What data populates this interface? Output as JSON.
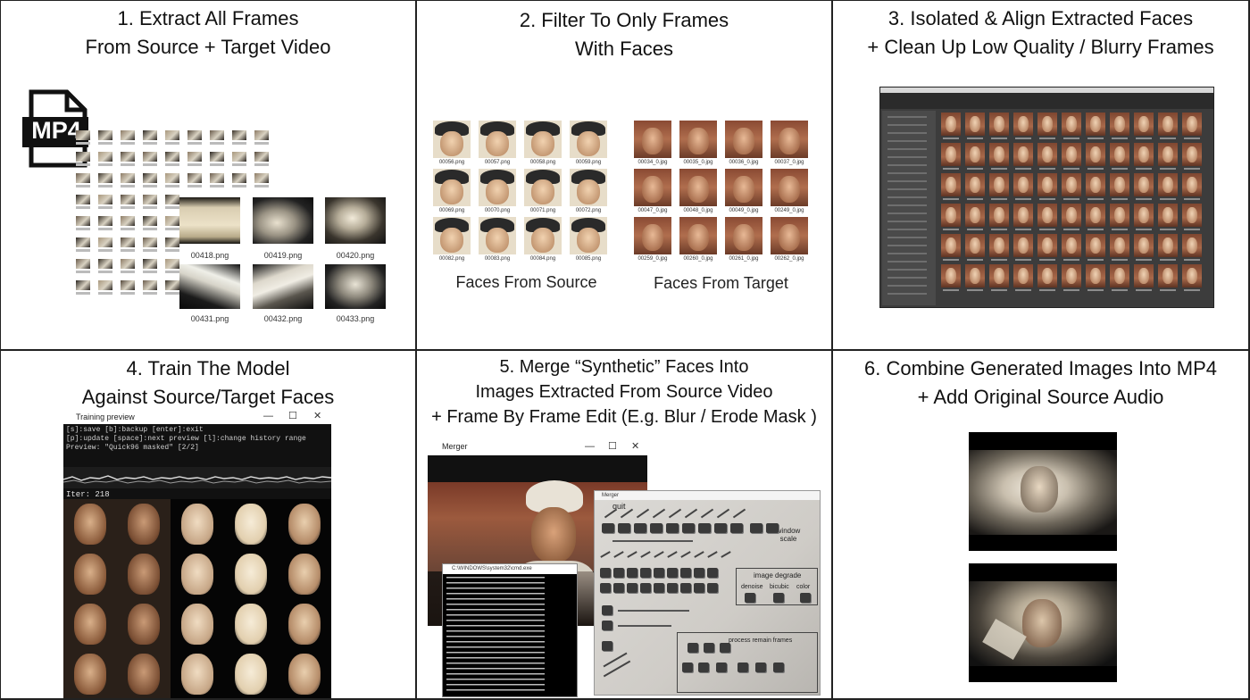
{
  "panels": [
    {
      "title_line1": "1. Extract All Frames",
      "title_line2": "From Source + Target Video"
    },
    {
      "title_line1": "2. Filter To Only Frames",
      "title_line2": "With Faces"
    },
    {
      "title_line1": "3. Isolated & Align Extracted Faces",
      "title_line2": "+ Clean Up Low Quality / Blurry Frames"
    },
    {
      "title_line1": "4. Train The Model",
      "title_line2": "Against Source/Target Faces"
    },
    {
      "title_line1": "5. Merge “Synthetic” Faces Into",
      "title_line2": "Images Extracted From Source Video",
      "title_line3": "+ Frame By Frame Edit (E.g. Blur / Erode Mask )"
    },
    {
      "title_line1": "6. Combine Generated Images Into MP4",
      "title_line2": "+ Add Original Source Audio"
    }
  ],
  "panel1": {
    "file_icon_label": "MP4",
    "frame_captions": [
      "00418.png",
      "00419.png",
      "00420.png",
      "00431.png",
      "00432.png",
      "00433.png"
    ]
  },
  "panel2": {
    "source_caption": "Faces From Source",
    "target_caption": "Faces From Target",
    "source_files": [
      "00056.png",
      "00057.png",
      "00058.png",
      "00059.png",
      "00069.png",
      "00070.png",
      "00071.png",
      "00072.png",
      "00082.png",
      "00083.png",
      "00084.png",
      "00085.png"
    ],
    "target_files": [
      "00034_0.jpg",
      "00035_0.jpg",
      "00036_0.jpg",
      "00037_0.jpg",
      "00047_0.jpg",
      "00048_0.jpg",
      "00049_0.jpg",
      "00249_0.jpg",
      "00259_0.jpg",
      "00260_0.jpg",
      "00261_0.jpg",
      "00262_0.jpg"
    ]
  },
  "panel4": {
    "window_title": "Training preview",
    "console_line1": "[s]:save [b]:backup [enter]:exit",
    "console_line2": "[p]:update [space]:next preview [l]:change history range",
    "console_line3": "Preview: \"Quick96 masked\" [2/2]",
    "iter_label": "Iter: 218"
  },
  "panel5": {
    "merger_title": "Merger",
    "console_title": "C:\\WINDOWS\\system32\\cmd.exe",
    "help_title": "Merger",
    "help_label_quit": "quit",
    "help_label_window": "window scale",
    "help_label_degrade": "image degrade",
    "help_label_denoise": "denoise",
    "help_label_bicubic": "bicubic",
    "help_label_color": "color",
    "help_label_process": "process remain frames"
  },
  "colors": {
    "border": "#222222",
    "dark_window": "#1a1a1a",
    "skin_dark": "#8a5a3a",
    "skin_light": "#e6c9a8",
    "skin_warm": "#c98b5e"
  }
}
